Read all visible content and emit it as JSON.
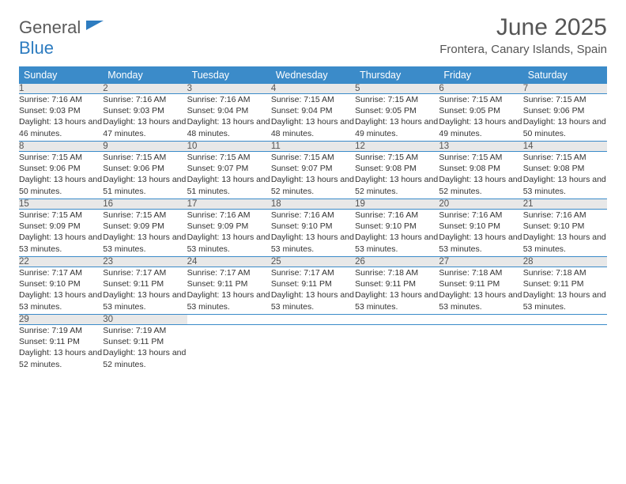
{
  "logo": {
    "part1": "General",
    "part2": "Blue"
  },
  "title": "June 2025",
  "location": "Frontera, Canary Islands, Spain",
  "colors": {
    "header_bg": "#3b8bc9",
    "header_fg": "#ffffff",
    "daynum_bg": "#e8e8e8",
    "border": "#3b8bc9",
    "logo_gray": "#5a5a5a",
    "logo_blue": "#2d7cc0"
  },
  "weekdays": [
    "Sunday",
    "Monday",
    "Tuesday",
    "Wednesday",
    "Thursday",
    "Friday",
    "Saturday"
  ],
  "weeks": [
    [
      {
        "n": "1",
        "sr": "7:16 AM",
        "ss": "9:03 PM",
        "dl": "13 hours and 46 minutes."
      },
      {
        "n": "2",
        "sr": "7:16 AM",
        "ss": "9:03 PM",
        "dl": "13 hours and 47 minutes."
      },
      {
        "n": "3",
        "sr": "7:16 AM",
        "ss": "9:04 PM",
        "dl": "13 hours and 48 minutes."
      },
      {
        "n": "4",
        "sr": "7:15 AM",
        "ss": "9:04 PM",
        "dl": "13 hours and 48 minutes."
      },
      {
        "n": "5",
        "sr": "7:15 AM",
        "ss": "9:05 PM",
        "dl": "13 hours and 49 minutes."
      },
      {
        "n": "6",
        "sr": "7:15 AM",
        "ss": "9:05 PM",
        "dl": "13 hours and 49 minutes."
      },
      {
        "n": "7",
        "sr": "7:15 AM",
        "ss": "9:06 PM",
        "dl": "13 hours and 50 minutes."
      }
    ],
    [
      {
        "n": "8",
        "sr": "7:15 AM",
        "ss": "9:06 PM",
        "dl": "13 hours and 50 minutes."
      },
      {
        "n": "9",
        "sr": "7:15 AM",
        "ss": "9:06 PM",
        "dl": "13 hours and 51 minutes."
      },
      {
        "n": "10",
        "sr": "7:15 AM",
        "ss": "9:07 PM",
        "dl": "13 hours and 51 minutes."
      },
      {
        "n": "11",
        "sr": "7:15 AM",
        "ss": "9:07 PM",
        "dl": "13 hours and 52 minutes."
      },
      {
        "n": "12",
        "sr": "7:15 AM",
        "ss": "9:08 PM",
        "dl": "13 hours and 52 minutes."
      },
      {
        "n": "13",
        "sr": "7:15 AM",
        "ss": "9:08 PM",
        "dl": "13 hours and 52 minutes."
      },
      {
        "n": "14",
        "sr": "7:15 AM",
        "ss": "9:08 PM",
        "dl": "13 hours and 53 minutes."
      }
    ],
    [
      {
        "n": "15",
        "sr": "7:15 AM",
        "ss": "9:09 PM",
        "dl": "13 hours and 53 minutes."
      },
      {
        "n": "16",
        "sr": "7:15 AM",
        "ss": "9:09 PM",
        "dl": "13 hours and 53 minutes."
      },
      {
        "n": "17",
        "sr": "7:16 AM",
        "ss": "9:09 PM",
        "dl": "13 hours and 53 minutes."
      },
      {
        "n": "18",
        "sr": "7:16 AM",
        "ss": "9:10 PM",
        "dl": "13 hours and 53 minutes."
      },
      {
        "n": "19",
        "sr": "7:16 AM",
        "ss": "9:10 PM",
        "dl": "13 hours and 53 minutes."
      },
      {
        "n": "20",
        "sr": "7:16 AM",
        "ss": "9:10 PM",
        "dl": "13 hours and 53 minutes."
      },
      {
        "n": "21",
        "sr": "7:16 AM",
        "ss": "9:10 PM",
        "dl": "13 hours and 53 minutes."
      }
    ],
    [
      {
        "n": "22",
        "sr": "7:17 AM",
        "ss": "9:10 PM",
        "dl": "13 hours and 53 minutes."
      },
      {
        "n": "23",
        "sr": "7:17 AM",
        "ss": "9:11 PM",
        "dl": "13 hours and 53 minutes."
      },
      {
        "n": "24",
        "sr": "7:17 AM",
        "ss": "9:11 PM",
        "dl": "13 hours and 53 minutes."
      },
      {
        "n": "25",
        "sr": "7:17 AM",
        "ss": "9:11 PM",
        "dl": "13 hours and 53 minutes."
      },
      {
        "n": "26",
        "sr": "7:18 AM",
        "ss": "9:11 PM",
        "dl": "13 hours and 53 minutes."
      },
      {
        "n": "27",
        "sr": "7:18 AM",
        "ss": "9:11 PM",
        "dl": "13 hours and 53 minutes."
      },
      {
        "n": "28",
        "sr": "7:18 AM",
        "ss": "9:11 PM",
        "dl": "13 hours and 53 minutes."
      }
    ],
    [
      {
        "n": "29",
        "sr": "7:19 AM",
        "ss": "9:11 PM",
        "dl": "13 hours and 52 minutes."
      },
      {
        "n": "30",
        "sr": "7:19 AM",
        "ss": "9:11 PM",
        "dl": "13 hours and 52 minutes."
      },
      null,
      null,
      null,
      null,
      null
    ]
  ],
  "labels": {
    "sunrise": "Sunrise:",
    "sunset": "Sunset:",
    "daylight": "Daylight:"
  }
}
